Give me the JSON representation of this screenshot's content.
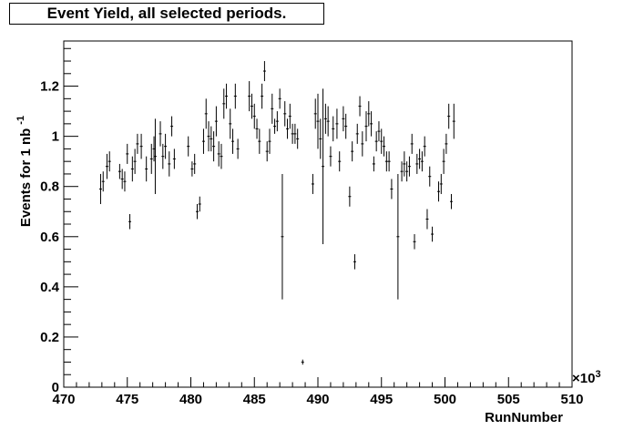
{
  "chart_data": {
    "type": "scatter",
    "title": "Event Yield, all selected periods.",
    "xlabel": "RunNumber",
    "ylabel": "Events for 1 nb",
    "ylabel_superscript": "-1",
    "x_multiplier": "×10",
    "x_multiplier_exp": "3",
    "xlim": [
      470,
      510
    ],
    "ylim": [
      0,
      1.38
    ],
    "x_ticks": [
      "470",
      "475",
      "480",
      "485",
      "490",
      "495",
      "500",
      "505",
      "510"
    ],
    "y_ticks": [
      "0",
      "0.2",
      "0.4",
      "0.6",
      "0.8",
      "1",
      "1.2"
    ],
    "grid": false,
    "points": [
      {
        "x": 472.9,
        "y": 0.79,
        "e": 0.06
      },
      {
        "x": 473.1,
        "y": 0.82,
        "e": 0.04
      },
      {
        "x": 473.4,
        "y": 0.88,
        "e": 0.05
      },
      {
        "x": 473.6,
        "y": 0.9,
        "e": 0.04
      },
      {
        "x": 474.4,
        "y": 0.86,
        "e": 0.03
      },
      {
        "x": 474.6,
        "y": 0.83,
        "e": 0.04
      },
      {
        "x": 474.8,
        "y": 0.82,
        "e": 0.04
      },
      {
        "x": 475.0,
        "y": 0.93,
        "e": 0.04
      },
      {
        "x": 475.2,
        "y": 0.66,
        "e": 0.03
      },
      {
        "x": 475.4,
        "y": 0.87,
        "e": 0.05
      },
      {
        "x": 475.6,
        "y": 0.9,
        "e": 0.05
      },
      {
        "x": 475.8,
        "y": 0.97,
        "e": 0.04
      },
      {
        "x": 476.1,
        "y": 0.96,
        "e": 0.05
      },
      {
        "x": 476.5,
        "y": 0.87,
        "e": 0.05
      },
      {
        "x": 476.9,
        "y": 0.91,
        "e": 0.06
      },
      {
        "x": 477.1,
        "y": 0.95,
        "e": 0.05
      },
      {
        "x": 477.2,
        "y": 0.92,
        "e": 0.15
      },
      {
        "x": 477.6,
        "y": 1.01,
        "e": 0.05
      },
      {
        "x": 477.8,
        "y": 0.92,
        "e": 0.05
      },
      {
        "x": 478.0,
        "y": 0.96,
        "e": 0.05
      },
      {
        "x": 478.3,
        "y": 0.89,
        "e": 0.05
      },
      {
        "x": 478.5,
        "y": 1.04,
        "e": 0.04
      },
      {
        "x": 478.7,
        "y": 0.91,
        "e": 0.04
      },
      {
        "x": 479.8,
        "y": 0.96,
        "e": 0.04
      },
      {
        "x": 480.1,
        "y": 0.87,
        "e": 0.03
      },
      {
        "x": 480.3,
        "y": 0.89,
        "e": 0.04
      },
      {
        "x": 480.5,
        "y": 0.7,
        "e": 0.03
      },
      {
        "x": 480.7,
        "y": 0.73,
        "e": 0.03
      },
      {
        "x": 481.0,
        "y": 0.98,
        "e": 0.05
      },
      {
        "x": 481.2,
        "y": 1.09,
        "e": 0.06
      },
      {
        "x": 481.4,
        "y": 1.0,
        "e": 0.06
      },
      {
        "x": 481.6,
        "y": 0.99,
        "e": 0.05
      },
      {
        "x": 481.8,
        "y": 0.96,
        "e": 0.06
      },
      {
        "x": 482.0,
        "y": 1.06,
        "e": 0.06
      },
      {
        "x": 482.2,
        "y": 0.93,
        "e": 0.05
      },
      {
        "x": 482.4,
        "y": 0.92,
        "e": 0.05
      },
      {
        "x": 482.6,
        "y": 1.13,
        "e": 0.06
      },
      {
        "x": 482.8,
        "y": 1.16,
        "e": 0.05
      },
      {
        "x": 483.1,
        "y": 1.05,
        "e": 0.06
      },
      {
        "x": 483.3,
        "y": 0.98,
        "e": 0.05
      },
      {
        "x": 483.5,
        "y": 1.16,
        "e": 0.05
      },
      {
        "x": 483.7,
        "y": 0.95,
        "e": 0.04
      },
      {
        "x": 484.6,
        "y": 1.16,
        "e": 0.06
      },
      {
        "x": 484.8,
        "y": 1.12,
        "e": 0.05
      },
      {
        "x": 485.0,
        "y": 1.08,
        "e": 0.05
      },
      {
        "x": 485.2,
        "y": 1.03,
        "e": 0.04
      },
      {
        "x": 485.4,
        "y": 0.98,
        "e": 0.05
      },
      {
        "x": 485.6,
        "y": 1.16,
        "e": 0.05
      },
      {
        "x": 485.8,
        "y": 1.26,
        "e": 0.04
      },
      {
        "x": 486.0,
        "y": 0.94,
        "e": 0.04
      },
      {
        "x": 486.2,
        "y": 0.98,
        "e": 0.05
      },
      {
        "x": 486.4,
        "y": 1.11,
        "e": 0.06
      },
      {
        "x": 486.6,
        "y": 1.04,
        "e": 0.03
      },
      {
        "x": 486.8,
        "y": 1.06,
        "e": 0.04
      },
      {
        "x": 487.0,
        "y": 1.15,
        "e": 0.04
      },
      {
        "x": 487.2,
        "y": 0.6,
        "e": 0.25
      },
      {
        "x": 487.4,
        "y": 1.09,
        "e": 0.05
      },
      {
        "x": 487.6,
        "y": 1.03,
        "e": 0.04
      },
      {
        "x": 487.8,
        "y": 1.08,
        "e": 0.05
      },
      {
        "x": 488.0,
        "y": 1.01,
        "e": 0.04
      },
      {
        "x": 488.2,
        "y": 1.01,
        "e": 0.04
      },
      {
        "x": 488.4,
        "y": 0.99,
        "e": 0.04
      },
      {
        "x": 488.8,
        "y": 0.1,
        "e": 0.01
      },
      {
        "x": 489.6,
        "y": 0.81,
        "e": 0.04
      },
      {
        "x": 489.8,
        "y": 1.09,
        "e": 0.06
      },
      {
        "x": 490.0,
        "y": 1.06,
        "e": 0.11
      },
      {
        "x": 490.2,
        "y": 0.99,
        "e": 0.08
      },
      {
        "x": 490.4,
        "y": 0.88,
        "e": 0.31
      },
      {
        "x": 490.6,
        "y": 1.07,
        "e": 0.06
      },
      {
        "x": 490.8,
        "y": 1.06,
        "e": 0.06
      },
      {
        "x": 491.0,
        "y": 0.92,
        "e": 0.04
      },
      {
        "x": 491.2,
        "y": 1.03,
        "e": 0.05
      },
      {
        "x": 491.5,
        "y": 1.05,
        "e": 0.06
      },
      {
        "x": 491.7,
        "y": 0.9,
        "e": 0.04
      },
      {
        "x": 492.0,
        "y": 1.07,
        "e": 0.05
      },
      {
        "x": 492.2,
        "y": 1.04,
        "e": 0.05
      },
      {
        "x": 492.5,
        "y": 0.76,
        "e": 0.04
      },
      {
        "x": 492.7,
        "y": 0.94,
        "e": 0.04
      },
      {
        "x": 492.9,
        "y": 0.5,
        "e": 0.03
      },
      {
        "x": 493.1,
        "y": 1.01,
        "e": 0.04
      },
      {
        "x": 493.3,
        "y": 1.12,
        "e": 0.04
      },
      {
        "x": 493.5,
        "y": 0.97,
        "e": 0.05
      },
      {
        "x": 493.8,
        "y": 1.04,
        "e": 0.06
      },
      {
        "x": 494.0,
        "y": 1.09,
        "e": 0.05
      },
      {
        "x": 494.2,
        "y": 1.05,
        "e": 0.05
      },
      {
        "x": 494.4,
        "y": 0.89,
        "e": 0.03
      },
      {
        "x": 494.6,
        "y": 0.98,
        "e": 0.04
      },
      {
        "x": 494.8,
        "y": 1.02,
        "e": 0.04
      },
      {
        "x": 495.0,
        "y": 0.98,
        "e": 0.05
      },
      {
        "x": 495.2,
        "y": 0.96,
        "e": 0.04
      },
      {
        "x": 495.4,
        "y": 0.9,
        "e": 0.04
      },
      {
        "x": 495.6,
        "y": 0.9,
        "e": 0.04
      },
      {
        "x": 495.8,
        "y": 0.79,
        "e": 0.04
      },
      {
        "x": 496.3,
        "y": 0.6,
        "e": 0.25
      },
      {
        "x": 496.6,
        "y": 0.86,
        "e": 0.04
      },
      {
        "x": 496.8,
        "y": 0.89,
        "e": 0.05
      },
      {
        "x": 497.0,
        "y": 0.86,
        "e": 0.04
      },
      {
        "x": 497.2,
        "y": 0.88,
        "e": 0.04
      },
      {
        "x": 497.4,
        "y": 0.97,
        "e": 0.04
      },
      {
        "x": 497.6,
        "y": 0.58,
        "e": 0.03
      },
      {
        "x": 497.8,
        "y": 0.89,
        "e": 0.04
      },
      {
        "x": 498.0,
        "y": 0.91,
        "e": 0.04
      },
      {
        "x": 498.2,
        "y": 0.9,
        "e": 0.04
      },
      {
        "x": 498.4,
        "y": 0.96,
        "e": 0.04
      },
      {
        "x": 498.6,
        "y": 0.67,
        "e": 0.04
      },
      {
        "x": 498.8,
        "y": 0.84,
        "e": 0.04
      },
      {
        "x": 499.0,
        "y": 0.61,
        "e": 0.03
      },
      {
        "x": 499.5,
        "y": 0.78,
        "e": 0.04
      },
      {
        "x": 499.7,
        "y": 0.81,
        "e": 0.04
      },
      {
        "x": 499.9,
        "y": 0.9,
        "e": 0.05
      },
      {
        "x": 500.1,
        "y": 0.97,
        "e": 0.04
      },
      {
        "x": 500.3,
        "y": 1.08,
        "e": 0.05
      },
      {
        "x": 500.5,
        "y": 0.74,
        "e": 0.03
      },
      {
        "x": 500.7,
        "y": 1.06,
        "e": 0.07
      }
    ]
  }
}
